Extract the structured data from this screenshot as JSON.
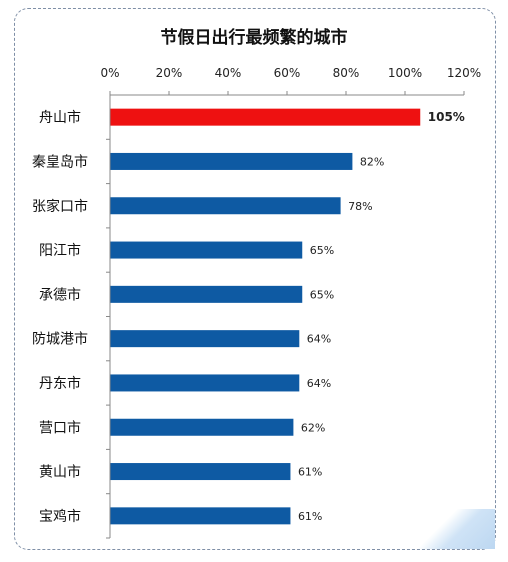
{
  "chart_data": {
    "type": "bar",
    "orientation": "horizontal",
    "title": "节假日出行最频繁的城市",
    "xlabel": "",
    "ylabel": "",
    "xlim": [
      0,
      120
    ],
    "x_ticks": [
      "0%",
      "20%",
      "40%",
      "60%",
      "80%",
      "100%",
      "120%"
    ],
    "x_axis_position": "top",
    "grid": false,
    "legend": "none",
    "categories": [
      "舟山市",
      "秦皇岛市",
      "张家口市",
      "阳江市",
      "承德市",
      "防城港市",
      "丹东市",
      "营口市",
      "黄山市",
      "宝鸡市"
    ],
    "values": [
      105,
      82,
      78,
      65,
      65,
      64,
      64,
      62,
      61,
      61
    ],
    "value_labels": [
      "105%",
      "82%",
      "78%",
      "65%",
      "65%",
      "64%",
      "64%",
      "62%",
      "61%",
      "61%"
    ],
    "colors": {
      "highlight": "#ee1111",
      "default": "#0e5aa3"
    },
    "highlight_index": 0
  }
}
